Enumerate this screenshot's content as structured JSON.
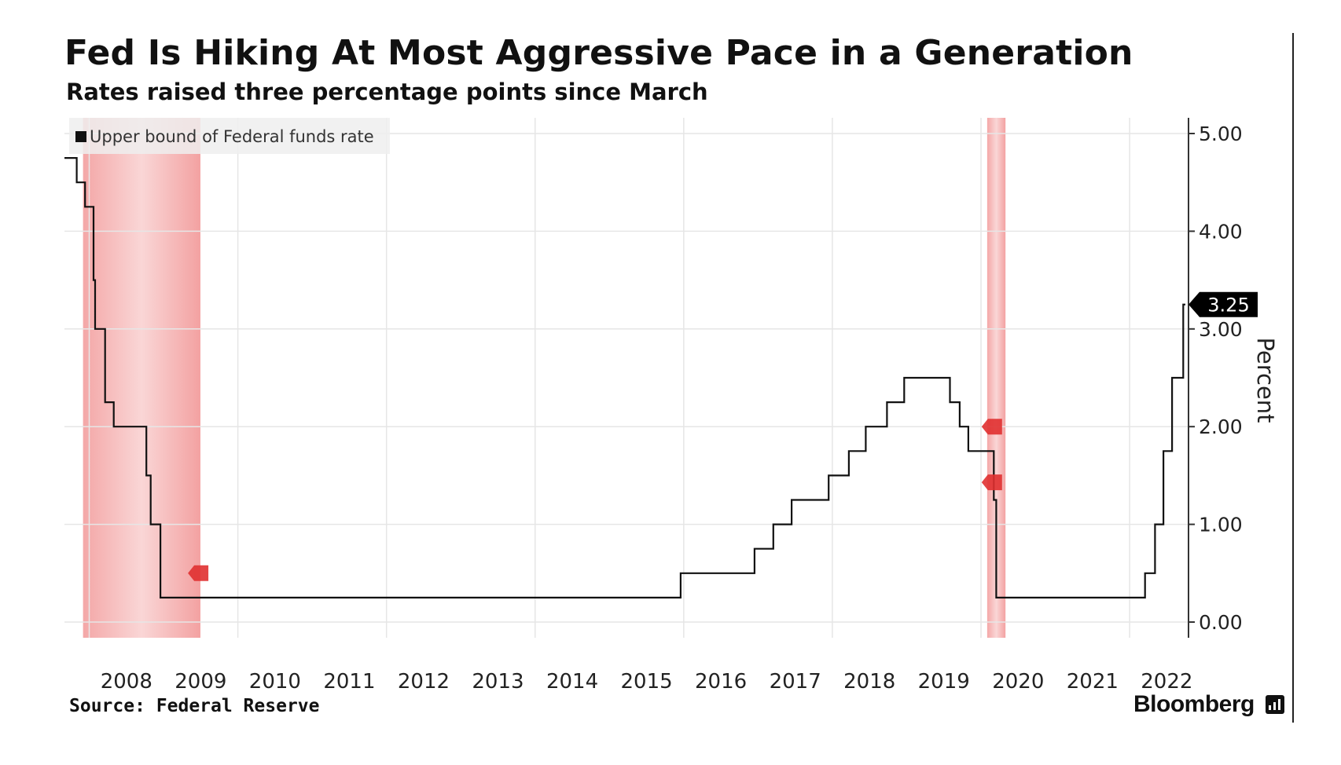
{
  "header": {
    "title": "Fed Is Hiking At Most Aggressive Pace in a Generation",
    "subtitle": "Rates raised three percentage points since March"
  },
  "footer": {
    "source": "Source: Federal Reserve",
    "brand": "Bloomberg"
  },
  "colors": {
    "line": "#111111",
    "recession": "#f08a8a",
    "grid": "#e6e6e6",
    "callout": "#000000",
    "marker": "#e03030"
  },
  "chart_data": {
    "type": "line",
    "title": "Fed Is Hiking At Most Aggressive Pace in a Generation",
    "subtitle": "Rates raised three percentage points since March",
    "ylabel": "Percent",
    "ylim": [
      0,
      5
    ],
    "xlim": [
      "2007-09-01",
      "2022-10-01"
    ],
    "y_ticks": [
      "0.00",
      "1.00",
      "2.00",
      "3.00",
      "4.00",
      "5.00"
    ],
    "x_ticks": [
      "2008",
      "2009",
      "2010",
      "2011",
      "2012",
      "2013",
      "2014",
      "2015",
      "2016",
      "2017",
      "2018",
      "2019",
      "2020",
      "2021",
      "2022"
    ],
    "y_axis_position": "right",
    "grid": true,
    "legend_position": "top-left",
    "series": [
      {
        "name": "Upper bound of Federal funds rate",
        "step": true,
        "points": [
          [
            "2007-09-01",
            4.75
          ],
          [
            "2007-10-31",
            4.5
          ],
          [
            "2007-12-11",
            4.25
          ],
          [
            "2008-01-22",
            3.5
          ],
          [
            "2008-01-30",
            3.0
          ],
          [
            "2008-03-18",
            2.25
          ],
          [
            "2008-04-30",
            2.0
          ],
          [
            "2008-10-08",
            1.5
          ],
          [
            "2008-10-29",
            1.0
          ],
          [
            "2008-12-16",
            0.25
          ],
          [
            "2015-12-16",
            0.5
          ],
          [
            "2016-12-14",
            0.75
          ],
          [
            "2017-03-15",
            1.0
          ],
          [
            "2017-06-14",
            1.25
          ],
          [
            "2017-12-13",
            1.5
          ],
          [
            "2018-03-21",
            1.75
          ],
          [
            "2018-06-13",
            2.0
          ],
          [
            "2018-09-26",
            2.25
          ],
          [
            "2018-12-19",
            2.5
          ],
          [
            "2019-07-31",
            2.25
          ],
          [
            "2019-09-18",
            2.0
          ],
          [
            "2019-10-30",
            1.75
          ],
          [
            "2020-03-03",
            1.25
          ],
          [
            "2020-03-15",
            0.25
          ],
          [
            "2022-03-16",
            0.5
          ],
          [
            "2022-05-04",
            1.0
          ],
          [
            "2022-06-15",
            1.75
          ],
          [
            "2022-07-27",
            2.5
          ],
          [
            "2022-09-21",
            3.25
          ],
          [
            "2022-10-01",
            3.25
          ]
        ]
      }
    ],
    "shaded_regions": [
      {
        "label": "recession",
        "start": "2007-12-01",
        "end": "2009-06-30"
      },
      {
        "label": "recession",
        "start": "2020-02-01",
        "end": "2020-04-30"
      }
    ],
    "event_markers": [
      {
        "date": "2009-06-15",
        "value": 0.5
      },
      {
        "date": "2020-02-20",
        "value": 2.0
      },
      {
        "date": "2020-02-20",
        "value": 1.43
      }
    ],
    "callout": {
      "value": "3.25"
    }
  }
}
